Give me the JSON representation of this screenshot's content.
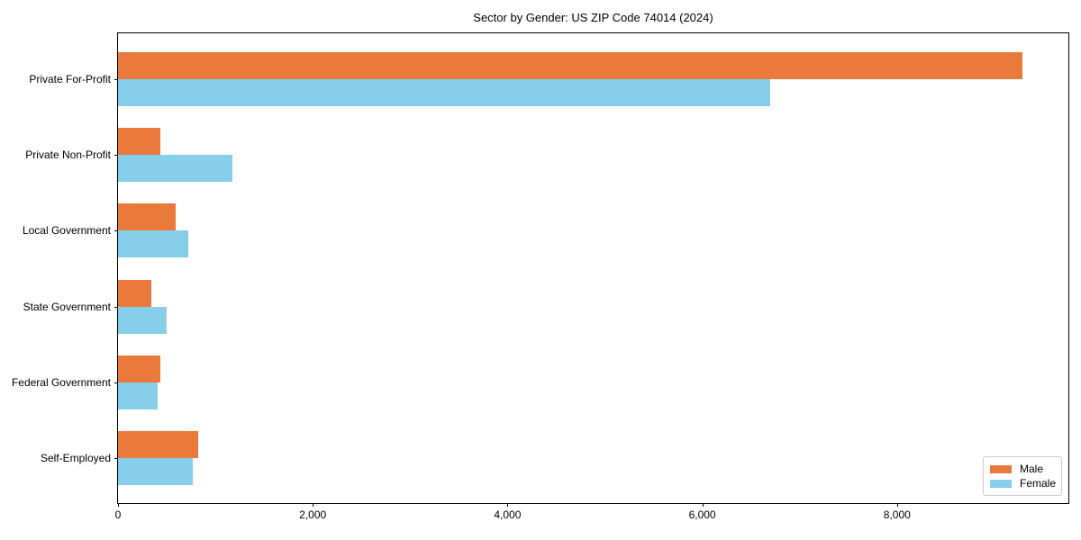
{
  "chart_data": {
    "type": "bar",
    "orientation": "horizontal",
    "title": "Sector by Gender: US ZIP Code 74014 (2024)",
    "categories": [
      "Private For-Profit",
      "Private Non-Profit",
      "Local Government",
      "State Government",
      "Federal Government",
      "Self-Employed"
    ],
    "series": [
      {
        "name": "Male",
        "color": "#EA7A3C",
        "values": [
          9290,
          430,
          590,
          340,
          435,
          820
        ]
      },
      {
        "name": "Female",
        "color": "#87CEEB",
        "values": [
          6700,
          1170,
          720,
          500,
          410,
          770
        ]
      }
    ],
    "xlabel": "",
    "ylabel": "",
    "xlim": [
      0,
      9760
    ],
    "xticks": [
      0,
      2000,
      4000,
      6000,
      8000
    ],
    "xtick_labels": [
      "0",
      "2,000",
      "4,000",
      "6,000",
      "8,000"
    ],
    "grid": false,
    "legend": {
      "position": "lower right",
      "entries": [
        "Male",
        "Female"
      ]
    }
  }
}
